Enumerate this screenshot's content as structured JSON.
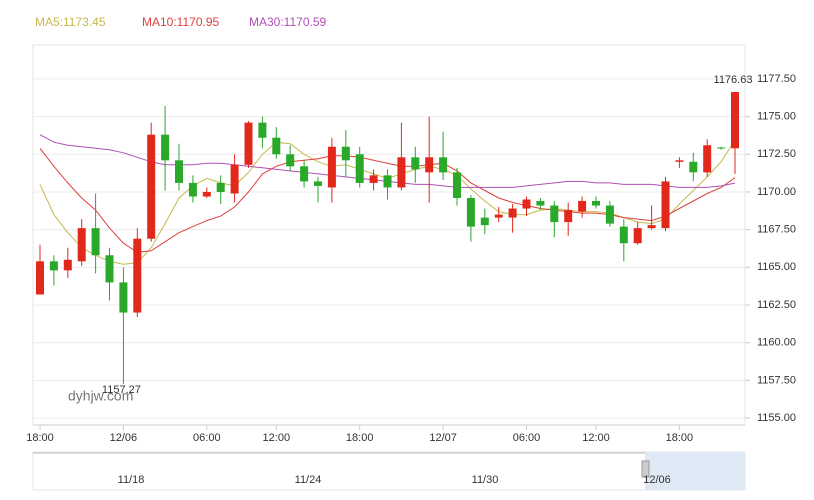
{
  "chart_data": {
    "type": "candlestick",
    "categories": [
      "18:00",
      null,
      null,
      null,
      null,
      null,
      "12/06",
      null,
      null,
      null,
      null,
      null,
      "06:00",
      null,
      null,
      null,
      null,
      "12:00",
      null,
      null,
      null,
      null,
      null,
      "18:00",
      null,
      null,
      null,
      null,
      null,
      "12/07",
      null,
      null,
      null,
      null,
      null,
      "06:00",
      null,
      null,
      null,
      null,
      "12:00",
      null,
      null,
      null,
      null,
      null,
      "18:00",
      null,
      null,
      null,
      null
    ],
    "open": [
      1163.2,
      1165.4,
      1164.8,
      1165.4,
      1167.6,
      1165.8,
      1164.0,
      1162.0,
      1166.9,
      1173.8,
      1172.1,
      1170.6,
      1169.7,
      1170.6,
      1169.9,
      1171.8,
      1174.6,
      1173.6,
      1172.5,
      1171.7,
      1170.7,
      1170.3,
      1173.0,
      1172.5,
      1170.6,
      1171.1,
      1170.3,
      1172.3,
      1171.3,
      1172.3,
      1171.3,
      1169.6,
      1168.3,
      1168.3,
      1168.3,
      1168.9,
      1169.4,
      1169.1,
      1168.0,
      1168.7,
      1169.4,
      1169.1,
      1167.7,
      1166.6,
      1167.6,
      1167.6,
      1172.0,
      1172.0,
      1171.3,
      1172.95,
      1172.9
    ],
    "high": [
      1166.5,
      1165.8,
      1166.3,
      1168.2,
      1169.9,
      1166.3,
      1165.0,
      1167.6,
      1174.6,
      1175.7,
      1173.2,
      1171.1,
      1170.3,
      1171.1,
      1172.5,
      1174.7,
      1175.0,
      1174.3,
      1173.1,
      1172.1,
      1171.0,
      1173.6,
      1174.1,
      1173.0,
      1171.5,
      1171.5,
      1174.6,
      1173.0,
      1175.0,
      1174.0,
      1171.6,
      1169.8,
      1168.9,
      1169.0,
      1169.2,
      1169.7,
      1169.6,
      1169.4,
      1169.3,
      1169.7,
      1169.7,
      1169.4,
      1168.2,
      1168.0,
      1169.1,
      1171.0,
      1172.3,
      1172.6,
      1173.5,
      1173.0,
      1176.63
    ],
    "low": [
      1163.2,
      1163.8,
      1164.3,
      1165.1,
      1164.6,
      1162.8,
      1157.27,
      1161.7,
      1166.7,
      1170.1,
      1170.1,
      1169.3,
      1169.6,
      1169.2,
      1169.3,
      1171.6,
      1172.9,
      1172.2,
      1171.4,
      1170.3,
      1169.3,
      1169.3,
      1171.0,
      1170.3,
      1170.1,
      1169.5,
      1170.1,
      1170.6,
      1169.3,
      1170.8,
      1169.1,
      1166.7,
      1167.2,
      1168.0,
      1167.3,
      1168.4,
      1168.8,
      1167.0,
      1167.1,
      1168.3,
      1168.9,
      1167.7,
      1165.4,
      1166.5,
      1167.5,
      1167.4,
      1171.6,
      1170.7,
      1171.0,
      1172.8,
      1171.2
    ],
    "close": [
      1165.4,
      1164.8,
      1165.5,
      1167.6,
      1165.8,
      1164.0,
      1162.0,
      1166.9,
      1173.8,
      1172.1,
      1170.6,
      1169.7,
      1170.0,
      1170.0,
      1171.8,
      1174.6,
      1173.6,
      1172.5,
      1171.7,
      1170.7,
      1170.4,
      1173.0,
      1172.1,
      1170.6,
      1171.1,
      1170.3,
      1172.3,
      1171.5,
      1172.3,
      1171.3,
      1169.6,
      1167.7,
      1167.8,
      1168.5,
      1168.9,
      1169.5,
      1169.1,
      1168.0,
      1168.8,
      1169.4,
      1169.1,
      1167.9,
      1166.6,
      1167.6,
      1167.8,
      1170.7,
      1172.1,
      1171.3,
      1173.1,
      1172.9,
      1176.63
    ],
    "up_color": "#e2281b",
    "down_color": "#29a829",
    "lines": [
      {
        "name": "MA5:1173.45",
        "color": "#c6b94e",
        "values": [
          1170.5,
          1168.5,
          1167.3,
          1166.3,
          1165.8,
          1165.4,
          1165.2,
          1165.3,
          1166.3,
          1167.9,
          1169.6,
          1170.4,
          1170.9,
          1170.6,
          1170.4,
          1171.3,
          1172.5,
          1173.3,
          1173.2,
          1172.5,
          1172.0,
          1171.7,
          1171.8,
          1171.5,
          1171.2,
          1170.9,
          1171.2,
          1171.5,
          1171.7,
          1171.5,
          1171.1,
          1170.2,
          1169.4,
          1168.7,
          1168.5,
          1168.5,
          1168.8,
          1168.9,
          1168.8,
          1168.7,
          1168.7,
          1168.6,
          1168.3,
          1168.0,
          1167.9,
          1168.2,
          1169.2,
          1170.1,
          1171.0,
          1172.0,
          1173.45
        ]
      },
      {
        "name": "MA10:1170.95",
        "color": "#e0403c",
        "values": [
          1172.9,
          1171.7,
          1170.6,
          1169.6,
          1168.8,
          1167.6,
          1166.6,
          1166.0,
          1166.1,
          1166.7,
          1167.3,
          1167.7,
          1168.1,
          1168.4,
          1169.0,
          1170.0,
          1171.2,
          1171.7,
          1172.0,
          1172.1,
          1172.2,
          1172.4,
          1172.4,
          1172.3,
          1172.1,
          1171.9,
          1171.7,
          1171.7,
          1171.8,
          1171.9,
          1171.4,
          1170.6,
          1170.1,
          1169.6,
          1169.3,
          1169.1,
          1168.9,
          1168.8,
          1168.7,
          1168.6,
          1168.6,
          1168.5,
          1168.3,
          1168.2,
          1168.1,
          1168.4,
          1168.9,
          1169.4,
          1169.9,
          1170.3,
          1170.95
        ]
      },
      {
        "name": "MA30:1170.59",
        "color": "#b14fb6",
        "values": [
          1173.8,
          1173.3,
          1173.1,
          1173.0,
          1172.9,
          1172.8,
          1172.6,
          1172.3,
          1172.0,
          1171.8,
          1171.8,
          1171.8,
          1171.9,
          1171.9,
          1171.8,
          1171.7,
          1171.6,
          1171.5,
          1171.4,
          1171.3,
          1171.2,
          1171.1,
          1171.0,
          1170.9,
          1170.8,
          1170.7,
          1170.6,
          1170.5,
          1170.5,
          1170.4,
          1170.3,
          1170.3,
          1170.3,
          1170.3,
          1170.3,
          1170.4,
          1170.5,
          1170.6,
          1170.7,
          1170.7,
          1170.6,
          1170.6,
          1170.5,
          1170.5,
          1170.5,
          1170.4,
          1170.3,
          1170.3,
          1170.3,
          1170.4,
          1170.59
        ]
      }
    ],
    "ylim": [
      1154.54,
      1179.75
    ],
    "yticks": [
      {
        "value": 1155,
        "label": "1155.00"
      },
      {
        "value": 1157.5,
        "label": "1157.50"
      },
      {
        "value": 1160,
        "label": "1160.00"
      },
      {
        "value": 1162.5,
        "label": "1162.50"
      },
      {
        "value": 1165,
        "label": "1165.00"
      },
      {
        "value": 1167.5,
        "label": "1167.50"
      },
      {
        "value": 1170,
        "label": "1170.00"
      },
      {
        "value": 1172.5,
        "label": "1172.50"
      },
      {
        "value": 1175,
        "label": "1175.00"
      },
      {
        "value": 1177.5,
        "label": "1177.50"
      }
    ],
    "grid": true,
    "watermark": "dyhjw.com",
    "navigator_labels": [
      "11/18",
      "11/24",
      "11/30",
      "12/06"
    ]
  }
}
